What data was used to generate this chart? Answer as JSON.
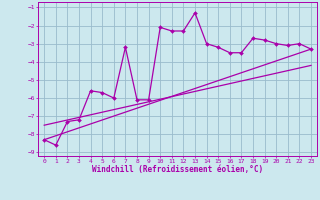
{
  "xlabel": "Windchill (Refroidissement éolien,°C)",
  "bg_color": "#cce8ee",
  "grid_color": "#99bbcc",
  "line_color": "#aa00aa",
  "xlim": [
    -0.5,
    23.5
  ],
  "ylim": [
    -9.2,
    -0.7
  ],
  "xticks": [
    0,
    1,
    2,
    3,
    4,
    5,
    6,
    7,
    8,
    9,
    10,
    11,
    12,
    13,
    14,
    15,
    16,
    17,
    18,
    19,
    20,
    21,
    22,
    23
  ],
  "yticks": [
    -9,
    -8,
    -7,
    -6,
    -5,
    -4,
    -3,
    -2,
    -1
  ],
  "curve1_x": [
    0,
    1,
    2,
    3,
    4,
    5,
    6,
    7,
    8,
    9,
    10,
    11,
    12,
    13,
    14,
    15,
    16,
    17,
    18,
    19,
    20,
    21,
    22,
    23
  ],
  "curve1_y": [
    -8.3,
    -8.6,
    -7.3,
    -7.2,
    -5.6,
    -5.7,
    -6.0,
    -3.2,
    -6.1,
    -6.1,
    -2.1,
    -2.3,
    -2.3,
    -1.3,
    -3.0,
    -3.2,
    -3.5,
    -3.5,
    -2.7,
    -2.8,
    -3.0,
    -3.1,
    -3.0,
    -3.3
  ],
  "line2_x": [
    0,
    23
  ],
  "line2_y": [
    -8.3,
    -3.3
  ],
  "line3_x": [
    0,
    23
  ],
  "line3_y": [
    -7.5,
    -4.2
  ]
}
